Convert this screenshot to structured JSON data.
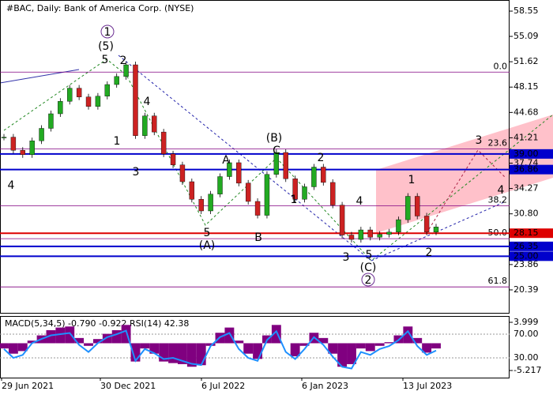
{
  "chart_data": {
    "type": "candle-line",
    "title": "#BAC, Daily:  Bank of America Corp. (NYSE)",
    "subtitle": "MACD(5,34,5) -0.790 -0.922 RSI(14) 42.38",
    "x_labels": [
      "29 Jun 2021",
      "30 Dec 2021",
      "6 Jul 2022",
      "6 Jan 2023",
      "13 Jul 2023"
    ],
    "values": [
      41.3,
      39.5,
      38.9,
      40.8,
      42.5,
      44.5,
      46.2,
      48.0,
      46.8,
      45.5,
      46.9,
      48.5,
      49.6,
      51.2,
      41.5,
      44.2,
      42.0,
      39.0,
      37.5,
      35.2,
      32.8,
      31.2,
      33.5,
      35.9,
      37.8,
      35.0,
      32.5,
      30.6,
      36.2,
      39.2,
      35.6,
      32.8,
      34.5,
      37.2,
      35.1,
      32.0,
      27.9,
      27.3,
      28.6,
      27.6,
      28.0,
      28.3,
      30.0,
      33.2,
      30.5,
      28.3,
      29.0
    ],
    "up_color": "#22aa22",
    "down_color": "#cc2222",
    "ylim": [
      17.25,
      60.07
    ],
    "yticks": [
      58.55,
      55.09,
      51.62,
      48.15,
      44.68,
      41.21,
      37.74,
      34.27,
      {
        "value": 30.8,
        "label": "30.80"
      },
      23.86,
      20.39
    ],
    "levels": [
      {
        "value": 39,
        "label": "39.00",
        "color": "#0000cc"
      },
      36.86,
      {
        "value": 28.15,
        "label": "28.15",
        "color": "#dd0000"
      },
      26.35,
      {
        "value": 25,
        "label": "25.00",
        "color": "#0000cc"
      }
    ],
    "level_color": "#0000cc",
    "fib_levels": [
      {
        "label": "0.0",
        "price": 50.2
      },
      {
        "label": "23.6",
        "price": 39.7
      },
      {
        "label": "38.2",
        "price": 31.9
      },
      {
        "label": "50.0",
        "price": 27.4
      },
      {
        "label": "61.8",
        "price": 20.8
      }
    ],
    "annotations": [
      "1",
      "(5)",
      "5",
      "2",
      "4",
      "1",
      "3",
      "4",
      "5",
      "(A)",
      "A",
      "B",
      "(B)",
      "C",
      "2",
      "1",
      "4",
      "3",
      "5",
      "(C)",
      "2",
      "1",
      "2",
      "3",
      "4"
    ],
    "macd": [
      -1.0,
      -2.0,
      -1.5,
      0.5,
      1.5,
      2.5,
      3.0,
      3.2,
      1.0,
      -0.5,
      0.8,
      1.8,
      2.5,
      3.5,
      -3.5,
      -1.0,
      -2.0,
      -3.5,
      -3.8,
      -4.0,
      -4.5,
      -4.2,
      -0.5,
      2.0,
      3.0,
      0.5,
      -2.0,
      -3.0,
      1.5,
      3.5,
      0.0,
      -2.5,
      -0.5,
      2.0,
      1.0,
      -2.0,
      -4.5,
      -4.0,
      -1.0,
      -1.5,
      -0.5,
      0.2,
      1.5,
      3.2,
      1.0,
      -1.8,
      -1.0
    ],
    "macd_color": "#800080",
    "macd_lim": [
      -6.58,
      5.21
    ],
    "macd_ticks": [
      3.999,
      -5.217
    ],
    "rsi": [
      45,
      30,
      35,
      55,
      62,
      68,
      70,
      72,
      52,
      40,
      55,
      65,
      70,
      76,
      25,
      45,
      38,
      28,
      30,
      25,
      20,
      18,
      50,
      65,
      72,
      45,
      30,
      25,
      60,
      75,
      40,
      28,
      45,
      65,
      52,
      32,
      15,
      12,
      40,
      35,
      45,
      50,
      60,
      75,
      50,
      35,
      42.38
    ],
    "rsi_color": "#1e90ff",
    "rsi_lim": [
      -3.3,
      100.7
    ],
    "rsi_ticks": [
      {
        "value": 70,
        "label": "70.00"
      },
      {
        "value": 30,
        "label": "30.00"
      }
    ]
  }
}
